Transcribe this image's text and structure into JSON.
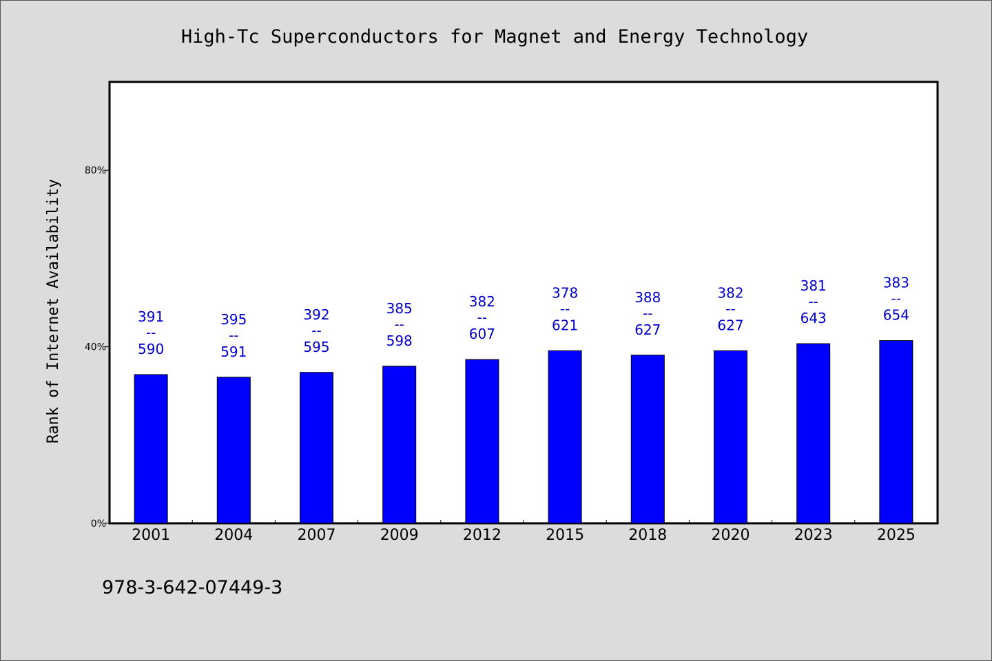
{
  "colors": {
    "background": "#dcdcdc",
    "plot_background": "#ffffff",
    "bar": "#0000ff",
    "label": "#0000cc",
    "axis": "#000000"
  },
  "footer": {
    "isbn": "978-3-642-07449-3"
  },
  "chart_data": {
    "type": "bar",
    "title": "High-Tc Superconductors for Magnet and Energy Technology",
    "xlabel": "",
    "ylabel": "Rank of Internet Availability",
    "ylim": [
      0,
      100
    ],
    "yticks": [
      0,
      40,
      80
    ],
    "ytick_labels": [
      "0%",
      "40%",
      "80%"
    ],
    "grid": false,
    "legend": "none",
    "categories": [
      "2001",
      "2004",
      "2007",
      "2009",
      "2012",
      "2015",
      "2018",
      "2020",
      "2023",
      "2025"
    ],
    "values": [
      33.7,
      33.1,
      34.2,
      35.6,
      37.1,
      39.1,
      38.1,
      39.1,
      40.7,
      41.4
    ],
    "data_labels": [
      {
        "top": "391",
        "sep": "--",
        "bottom": "590"
      },
      {
        "top": "395",
        "sep": "--",
        "bottom": "591"
      },
      {
        "top": "392",
        "sep": "--",
        "bottom": "595"
      },
      {
        "top": "385",
        "sep": "--",
        "bottom": "598"
      },
      {
        "top": "382",
        "sep": "--",
        "bottom": "607"
      },
      {
        "top": "378",
        "sep": "--",
        "bottom": "621"
      },
      {
        "top": "388",
        "sep": "--",
        "bottom": "627"
      },
      {
        "top": "382",
        "sep": "--",
        "bottom": "627"
      },
      {
        "top": "381",
        "sep": "--",
        "bottom": "643"
      },
      {
        "top": "383",
        "sep": "--",
        "bottom": "654"
      }
    ]
  }
}
